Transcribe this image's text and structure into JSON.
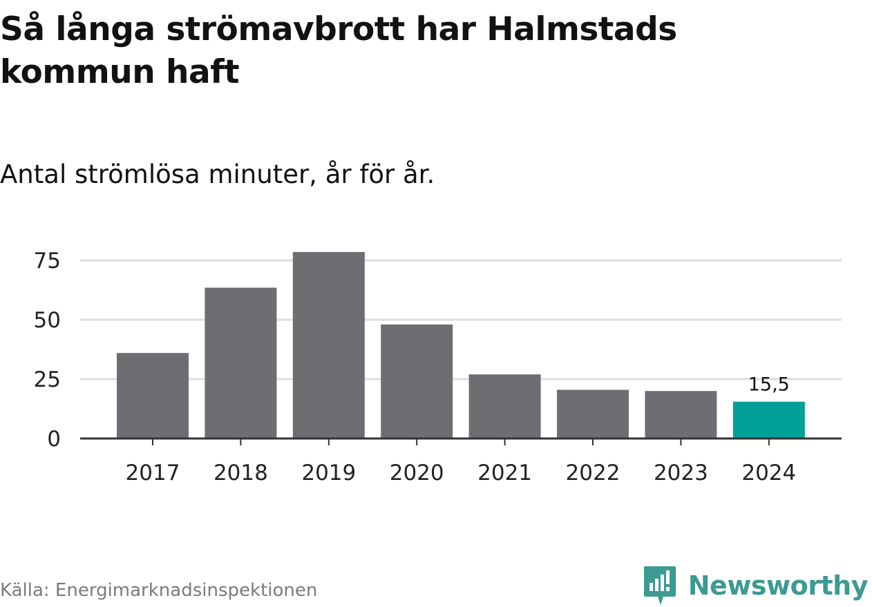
{
  "header": {
    "title": "Så långa strömavbrott har Halmstads kommun haft",
    "subtitle": "Antal strömlösa minuter, år för år."
  },
  "chart_data": {
    "type": "bar",
    "title": "Så långa strömavbrott har Halmstads kommun haft",
    "subtitle": "Antal strömlösa minuter, år för år.",
    "xlabel": "",
    "ylabel": "",
    "categories": [
      "2017",
      "2018",
      "2019",
      "2020",
      "2021",
      "2022",
      "2023",
      "2024"
    ],
    "values": [
      36,
      63.5,
      78.5,
      48,
      27,
      20.5,
      20,
      15.5
    ],
    "highlight_index": 7,
    "data_labels": [
      {
        "index": 7,
        "text": "15,5"
      }
    ],
    "yticks": [
      0,
      25,
      50,
      75
    ],
    "ylim": [
      0,
      80
    ],
    "grid": true,
    "colors": {
      "bar": "#6e6d72",
      "highlight": "#00a096",
      "grid": "#dddddd",
      "axis": "#333333"
    }
  },
  "footer": {
    "source": "Källa: Energimarknadsinspektionen",
    "brand": "Newsworthy",
    "brand_logo_icon": "bar-chart-speech-bubble-icon",
    "brand_color": "#3d9a93"
  }
}
